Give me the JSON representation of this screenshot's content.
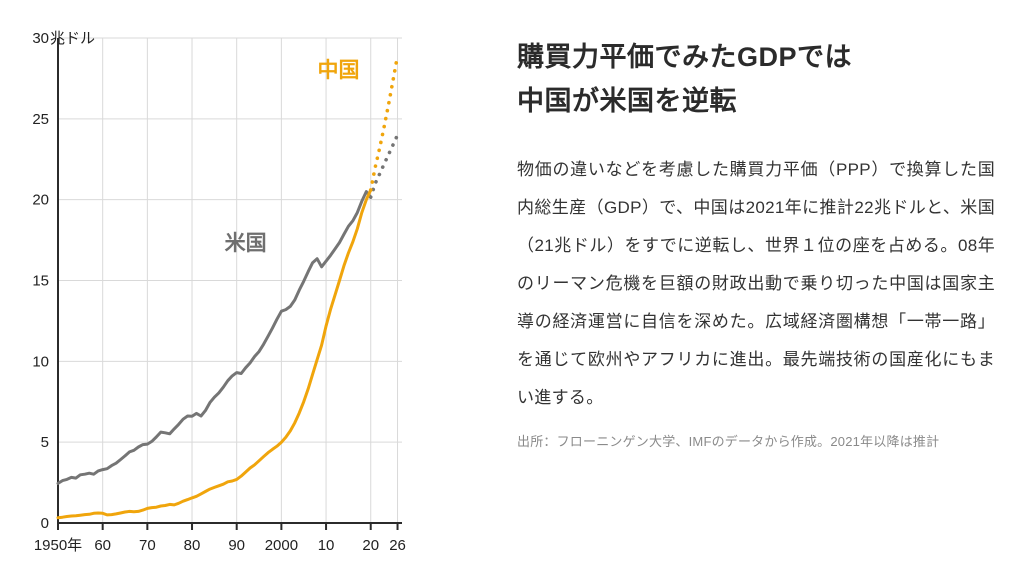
{
  "panel": {
    "title_lines": [
      "購買力平価でみたGDPでは",
      "中国が米国を逆転"
    ],
    "body": "物価の違いなどを考慮した購買力平価（PPP）で換算した国内総生産（GDP）で、中国は2021年に推計22兆ドルと、米国（21兆ドル）をすでに逆転し、世界１位の座を占める。08年のリーマン危機を巨額の財政出動で乗り切った中国は国家主導の経済運営に自信を深めた。広域経済圏構想「一帯一路」を通じて欧州やアフリカに進出。最先端技術の国産化にもまい進する。",
    "source": "出所：フローニンゲン大学、IMFのデータから作成。2021年以降は推計"
  },
  "chart_data": {
    "type": "line",
    "title": "",
    "xlabel": "",
    "ylabel": "兆ドル",
    "xlim": [
      1950,
      2027
    ],
    "ylim": [
      0,
      30
    ],
    "grid": true,
    "x_ticks": [
      {
        "v": 1950,
        "label": "1950年"
      },
      {
        "v": 1960,
        "label": "60"
      },
      {
        "v": 1970,
        "label": "70"
      },
      {
        "v": 1980,
        "label": "80"
      },
      {
        "v": 1990,
        "label": "90"
      },
      {
        "v": 2000,
        "label": "2000"
      },
      {
        "v": 2010,
        "label": "10"
      },
      {
        "v": 2020,
        "label": "20"
      },
      {
        "v": 2026,
        "label": "26"
      }
    ],
    "y_ticks": [
      0,
      5,
      10,
      15,
      20,
      25,
      30
    ],
    "colors": {
      "china": "#F0A50C",
      "us": "#757575",
      "grid": "#d9d9d9",
      "axis": "#2b2b2b"
    },
    "series": [
      {
        "name": "米国",
        "key": "us-solid",
        "color": "#757575",
        "style": "solid",
        "points": [
          [
            1950,
            2.45
          ],
          [
            1951,
            2.62
          ],
          [
            1952,
            2.7
          ],
          [
            1953,
            2.82
          ],
          [
            1954,
            2.78
          ],
          [
            1955,
            2.98
          ],
          [
            1956,
            3.02
          ],
          [
            1957,
            3.08
          ],
          [
            1958,
            3.02
          ],
          [
            1959,
            3.22
          ],
          [
            1960,
            3.3
          ],
          [
            1961,
            3.36
          ],
          [
            1962,
            3.55
          ],
          [
            1963,
            3.7
          ],
          [
            1964,
            3.92
          ],
          [
            1965,
            4.15
          ],
          [
            1966,
            4.4
          ],
          [
            1967,
            4.5
          ],
          [
            1968,
            4.7
          ],
          [
            1969,
            4.85
          ],
          [
            1970,
            4.88
          ],
          [
            1971,
            5.05
          ],
          [
            1972,
            5.32
          ],
          [
            1973,
            5.62
          ],
          [
            1974,
            5.58
          ],
          [
            1975,
            5.52
          ],
          [
            1976,
            5.82
          ],
          [
            1977,
            6.1
          ],
          [
            1978,
            6.42
          ],
          [
            1979,
            6.62
          ],
          [
            1980,
            6.6
          ],
          [
            1981,
            6.78
          ],
          [
            1982,
            6.62
          ],
          [
            1983,
            6.95
          ],
          [
            1984,
            7.45
          ],
          [
            1985,
            7.78
          ],
          [
            1986,
            8.05
          ],
          [
            1987,
            8.4
          ],
          [
            1988,
            8.8
          ],
          [
            1989,
            9.1
          ],
          [
            1990,
            9.3
          ],
          [
            1991,
            9.25
          ],
          [
            1992,
            9.6
          ],
          [
            1993,
            9.9
          ],
          [
            1994,
            10.3
          ],
          [
            1995,
            10.6
          ],
          [
            1996,
            11.05
          ],
          [
            1997,
            11.55
          ],
          [
            1998,
            12.05
          ],
          [
            1999,
            12.6
          ],
          [
            2000,
            13.1
          ],
          [
            2001,
            13.2
          ],
          [
            2002,
            13.4
          ],
          [
            2003,
            13.8
          ],
          [
            2004,
            14.4
          ],
          [
            2005,
            14.95
          ],
          [
            2006,
            15.55
          ],
          [
            2007,
            16.1
          ],
          [
            2008,
            16.35
          ],
          [
            2009,
            15.85
          ],
          [
            2010,
            16.2
          ],
          [
            2011,
            16.55
          ],
          [
            2012,
            16.95
          ],
          [
            2013,
            17.35
          ],
          [
            2014,
            17.85
          ],
          [
            2015,
            18.35
          ],
          [
            2016,
            18.7
          ],
          [
            2017,
            19.2
          ],
          [
            2018,
            19.9
          ],
          [
            2019,
            20.5
          ],
          [
            2020,
            20.15
          ]
        ]
      },
      {
        "name": "米国（推計）",
        "key": "us-projection",
        "color": "#757575",
        "style": "dotted",
        "points": [
          [
            2020,
            20.15
          ],
          [
            2021,
            21.0
          ],
          [
            2022,
            21.6
          ],
          [
            2023,
            22.2
          ],
          [
            2024,
            22.8
          ],
          [
            2025,
            23.4
          ],
          [
            2026,
            24.0
          ]
        ]
      },
      {
        "name": "中国",
        "key": "china-solid",
        "color": "#F0A50C",
        "style": "solid",
        "points": [
          [
            1950,
            0.33
          ],
          [
            1951,
            0.36
          ],
          [
            1952,
            0.4
          ],
          [
            1953,
            0.43
          ],
          [
            1954,
            0.45
          ],
          [
            1955,
            0.48
          ],
          [
            1956,
            0.52
          ],
          [
            1957,
            0.54
          ],
          [
            1958,
            0.6
          ],
          [
            1959,
            0.62
          ],
          [
            1960,
            0.6
          ],
          [
            1961,
            0.5
          ],
          [
            1962,
            0.52
          ],
          [
            1963,
            0.56
          ],
          [
            1964,
            0.62
          ],
          [
            1965,
            0.68
          ],
          [
            1966,
            0.72
          ],
          [
            1967,
            0.7
          ],
          [
            1968,
            0.72
          ],
          [
            1969,
            0.8
          ],
          [
            1970,
            0.9
          ],
          [
            1971,
            0.95
          ],
          [
            1972,
            0.98
          ],
          [
            1973,
            1.05
          ],
          [
            1974,
            1.08
          ],
          [
            1975,
            1.15
          ],
          [
            1976,
            1.12
          ],
          [
            1977,
            1.22
          ],
          [
            1978,
            1.35
          ],
          [
            1979,
            1.45
          ],
          [
            1980,
            1.55
          ],
          [
            1981,
            1.65
          ],
          [
            1982,
            1.8
          ],
          [
            1983,
            1.95
          ],
          [
            1984,
            2.1
          ],
          [
            1985,
            2.2
          ],
          [
            1986,
            2.3
          ],
          [
            1987,
            2.4
          ],
          [
            1988,
            2.55
          ],
          [
            1989,
            2.6
          ],
          [
            1990,
            2.7
          ],
          [
            1991,
            2.9
          ],
          [
            1992,
            3.15
          ],
          [
            1993,
            3.4
          ],
          [
            1994,
            3.6
          ],
          [
            1995,
            3.85
          ],
          [
            1996,
            4.1
          ],
          [
            1997,
            4.35
          ],
          [
            1998,
            4.55
          ],
          [
            1999,
            4.75
          ],
          [
            2000,
            5.0
          ],
          [
            2001,
            5.3
          ],
          [
            2002,
            5.7
          ],
          [
            2003,
            6.2
          ],
          [
            2004,
            6.8
          ],
          [
            2005,
            7.5
          ],
          [
            2006,
            8.3
          ],
          [
            2007,
            9.2
          ],
          [
            2008,
            10.1
          ],
          [
            2009,
            11.0
          ],
          [
            2010,
            12.2
          ],
          [
            2011,
            13.2
          ],
          [
            2012,
            14.1
          ],
          [
            2013,
            15.0
          ],
          [
            2014,
            15.9
          ],
          [
            2015,
            16.7
          ],
          [
            2016,
            17.4
          ],
          [
            2017,
            18.2
          ],
          [
            2018,
            19.2
          ],
          [
            2019,
            20.0
          ],
          [
            2020,
            20.6
          ]
        ]
      },
      {
        "name": "中国（推計）",
        "key": "china-projection",
        "color": "#F0A50C",
        "style": "dotted",
        "points": [
          [
            2020,
            20.6
          ],
          [
            2021,
            22.0
          ],
          [
            2022,
            23.2
          ],
          [
            2023,
            24.5
          ],
          [
            2024,
            25.9
          ],
          [
            2025,
            27.4
          ],
          [
            2026,
            28.9
          ]
        ]
      }
    ],
    "labels": [
      {
        "text": "中国",
        "x": 2012.8,
        "y": 27.6,
        "color": "#F0A50C",
        "key": "china"
      },
      {
        "text": "米国",
        "x": 1992.0,
        "y": 16.9,
        "color": "#6f6f6f",
        "key": "us"
      }
    ],
    "legend_position": "inline-labels",
    "annotations": [
      "2021年以降は推計（点線部分）"
    ]
  }
}
